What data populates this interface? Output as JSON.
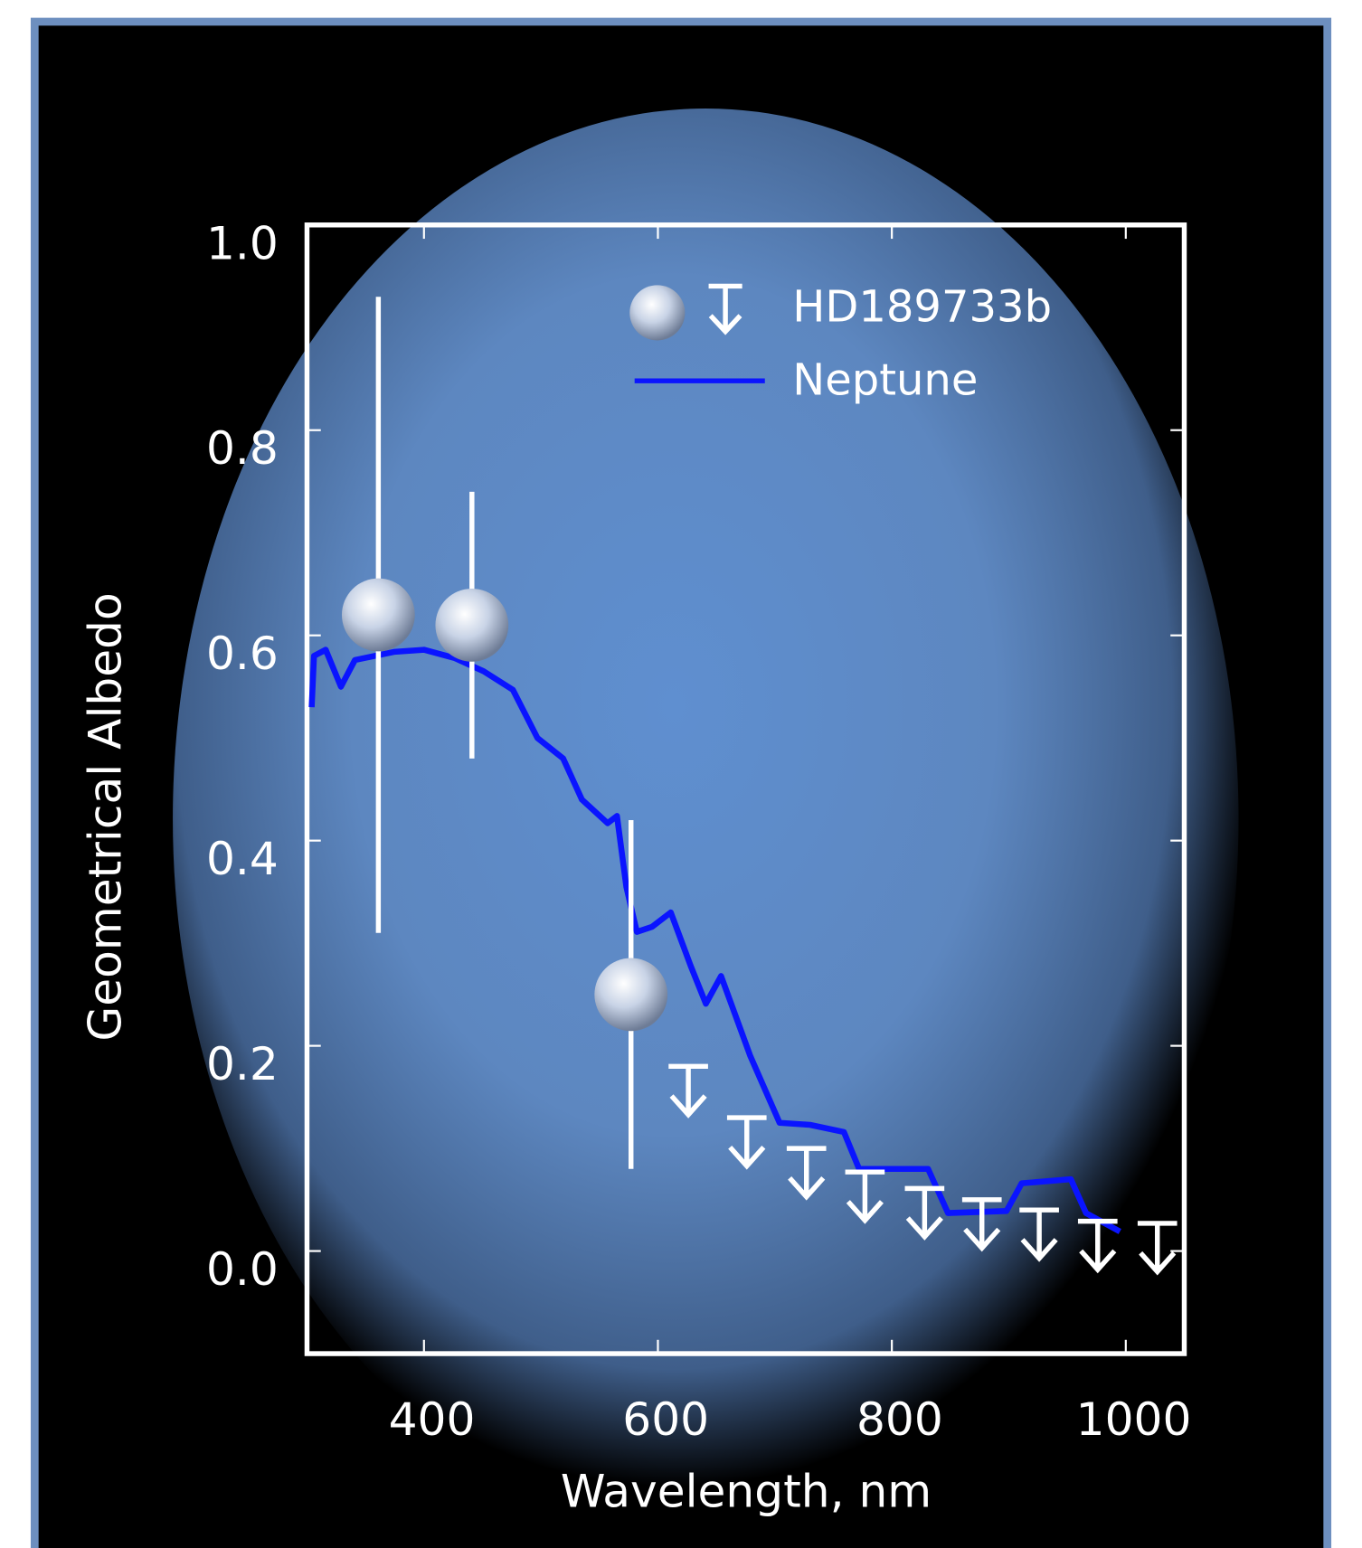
{
  "chart_data": {
    "type": "scatter",
    "xlabel": "Wavelength, nm",
    "ylabel": "Geometrical Albedo",
    "xlim": [
      300,
      1050
    ],
    "ylim": [
      -0.1,
      1.0
    ],
    "xticks": [
      400,
      600,
      800,
      1000
    ],
    "yticks": [
      {
        "value": 0,
        "label": "0.0"
      },
      0.2,
      0.4,
      0.6,
      0.8,
      {
        "value": 1,
        "label": "1.0"
      }
    ],
    "legend": "upper right",
    "series": [
      {
        "name": "HD189733b",
        "color": "#dfe6f0",
        "x": [
          361,
          441,
          577
        ],
        "values": [
          0.62,
          0.61,
          0.25
        ],
        "errors": [
          0.31,
          0.13,
          0.17
        ],
        "upper_limit_x": [
          626,
          676,
          727,
          777,
          828,
          877,
          926,
          976,
          1027
        ],
        "upper_limit_values": [
          0.18,
          0.13,
          0.1,
          0.077,
          0.061,
          0.05,
          0.04,
          0.029,
          0.027
        ]
      },
      {
        "name": "Neptune",
        "color": "#0a14ff",
        "x": [
          304,
          306,
          316,
          329,
          341,
          375,
          400,
          426,
          451,
          476,
          497,
          519,
          535,
          557,
          565,
          573,
          582,
          595,
          611,
          628,
          641,
          654,
          679,
          704,
          730,
          759,
          772,
          831,
          848,
          898,
          911,
          953,
          966,
          995
        ],
        "values": [
          0.53,
          0.58,
          0.586,
          0.55,
          0.576,
          0.584,
          0.586,
          0.578,
          0.565,
          0.547,
          0.5,
          0.48,
          0.44,
          0.417,
          0.424,
          0.355,
          0.311,
          0.316,
          0.33,
          0.278,
          0.241,
          0.268,
          0.19,
          0.125,
          0.123,
          0.116,
          0.08,
          0.08,
          0.037,
          0.039,
          0.066,
          0.07,
          0.037,
          0.019
        ]
      }
    ]
  }
}
